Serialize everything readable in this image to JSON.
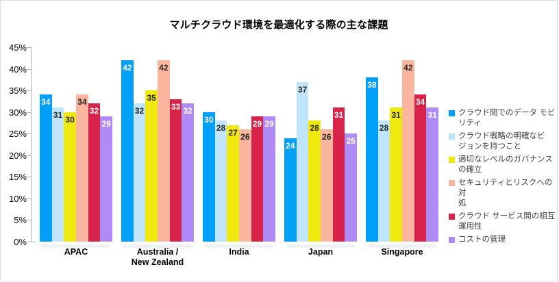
{
  "chart_data": {
    "type": "bar",
    "title": "マルチクラウド環境を最適化する際の主な課題",
    "categories": [
      "APAC",
      "Australia /\nNew Zealand",
      "India",
      "Japan",
      "Singapore"
    ],
    "series": [
      {
        "name": "クラウド間でのデータ モビリティ",
        "legend_label": "クラウド間でのデータ モビ\nリティ",
        "color": "#00A0F8",
        "label_color": "#FFFFFF",
        "values": [
          34,
          42,
          30,
          24,
          38
        ]
      },
      {
        "name": "クラウド戦略の明確なビジョンを持つこと",
        "legend_label": "クラウド戦略の明確なビ\nジョンを持つこと",
        "color": "#C0E5FA",
        "label_color": "#262626",
        "values": [
          31,
          32,
          28,
          37,
          28
        ]
      },
      {
        "name": "適切なレベルのガバナンスの確立",
        "legend_label": "適切なレベルのガバナンス\nの確立",
        "color": "#F0E90F",
        "label_color": "#262626",
        "values": [
          30,
          35,
          27,
          28,
          31
        ]
      },
      {
        "name": "セキュリティとリスクへの対処",
        "legend_label": "セキュリティとリスクへの対\n処",
        "color": "#FAB59E",
        "label_color": "#262626",
        "values": [
          34,
          42,
          26,
          26,
          42
        ]
      },
      {
        "name": "クラウド サービス間の相互運用性",
        "legend_label": "クラウド サービス間の相互\n運用性",
        "color": "#D8234A",
        "label_color": "#FFFFFF",
        "values": [
          32,
          33,
          29,
          31,
          34
        ]
      },
      {
        "name": "コストの管理",
        "legend_label": "コストの管理",
        "color": "#B08BF8",
        "label_color": "#FFFFFF",
        "values": [
          29,
          32,
          29,
          25,
          31
        ]
      }
    ],
    "xlabel": "",
    "ylabel": "",
    "ylim": [
      0,
      45
    ],
    "y_tick_step": 5,
    "y_tick_labels": [
      "0%",
      "5%",
      "10%",
      "15%",
      "20%",
      "25%",
      "30%",
      "35%",
      "40%",
      "45%"
    ],
    "grid": false,
    "legend_position": "right",
    "axis_color": "#a6adb5"
  }
}
